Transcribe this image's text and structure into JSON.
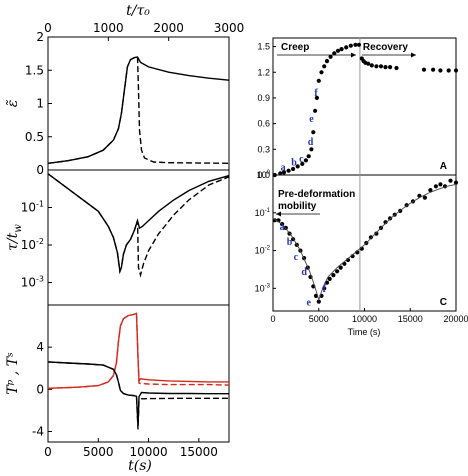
{
  "chart_data": [
    {
      "id": "left-figure",
      "type": "line",
      "top_axis": {
        "label": "t/τ₀",
        "ticks": [
          0,
          1000,
          2000,
          3000
        ]
      },
      "xlabel": "t(s)",
      "xlim": [
        0,
        18000
      ],
      "xticks": [
        0,
        5000,
        10000,
        15000
      ],
      "panels": [
        {
          "id": "strain",
          "ylabel": "ε̃",
          "ylim": [
            0,
            2
          ],
          "yticks": [
            "0",
            "0.5",
            "1",
            "1.5",
            "2"
          ],
          "yticks_values": [
            0,
            0.5,
            1,
            1.5,
            2
          ],
          "series": [
            {
              "style": "solid",
              "color": "#000000",
              "x": [
                0,
                2000,
                4000,
                5500,
                6500,
                7000,
                7300,
                7600,
                7900,
                8200,
                8600,
                8900,
                9200,
                10000,
                12000,
                14000,
                16000,
                18000
              ],
              "y": [
                0.1,
                0.14,
                0.2,
                0.3,
                0.45,
                0.62,
                0.85,
                1.2,
                1.55,
                1.66,
                1.69,
                1.7,
                1.62,
                1.55,
                1.47,
                1.42,
                1.38,
                1.35
              ]
            },
            {
              "style": "dashed",
              "color": "#000000",
              "x": [
                0,
                2000,
                4000,
                5500,
                6500,
                7000,
                7300,
                7600,
                7900,
                8200,
                8600,
                8900,
                9000,
                9100,
                9300,
                9600,
                10500,
                12000,
                18000
              ],
              "y": [
                0.1,
                0.14,
                0.2,
                0.3,
                0.45,
                0.62,
                0.85,
                1.2,
                1.55,
                1.66,
                1.69,
                1.7,
                1.2,
                0.6,
                0.3,
                0.18,
                0.12,
                0.11,
                0.1
              ]
            }
          ]
        },
        {
          "id": "relaxation",
          "ylabel": "τ/t",
          "ylabel_sub": "w",
          "ylim_log10": [
            -3.6,
            0
          ],
          "yticks": [
            {
              "base": "10",
              "exp": "-1",
              "value": -1
            },
            {
              "base": "10",
              "exp": "-2",
              "value": -2
            },
            {
              "base": "10",
              "exp": "-3",
              "value": -3
            }
          ],
          "series": [
            {
              "style": "solid",
              "color": "#000000",
              "x": [
                0,
                1000,
                3000,
                5000,
                6000,
                6500,
                6900,
                7150,
                7300,
                7500,
                7800,
                8200,
                8600,
                8900,
                9100,
                9400,
                10000,
                11000,
                12500,
                14000,
                16000,
                18000
              ],
              "y": [
                -0.1,
                -0.3,
                -0.7,
                -1.1,
                -1.5,
                -1.8,
                -2.2,
                -2.7,
                -2.6,
                -2.25,
                -2.0,
                -1.85,
                -1.6,
                -1.35,
                -1.55,
                -1.5,
                -1.35,
                -1.1,
                -0.8,
                -0.55,
                -0.3,
                -0.15
              ]
            },
            {
              "style": "dashed",
              "color": "#000000",
              "x": [
                0,
                1000,
                3000,
                5000,
                6000,
                6500,
                6900,
                7150,
                7300,
                7500,
                7800,
                8200,
                8600,
                8900,
                9000,
                9200,
                9500,
                10000,
                11000,
                12500,
                14000,
                16000,
                18000
              ],
              "y": [
                -0.1,
                -0.3,
                -0.7,
                -1.1,
                -1.5,
                -1.8,
                -2.2,
                -2.7,
                -2.6,
                -2.25,
                -2.0,
                -1.85,
                -1.6,
                -1.35,
                -2.6,
                -2.8,
                -2.5,
                -2.15,
                -1.7,
                -1.2,
                -0.8,
                -0.4,
                -0.18
              ]
            }
          ]
        },
        {
          "id": "temperatures",
          "ylabel": "Tᵖ , Tˢ",
          "ylim": [
            -5,
            8
          ],
          "yticks": [
            "-4",
            "0",
            "4"
          ],
          "yticks_values": [
            -4,
            0,
            4
          ],
          "series": [
            {
              "style": "solid",
              "color": "#d42a1e",
              "x": [
                0,
                3000,
                5000,
                6000,
                6500,
                6800,
                7000,
                7200,
                7500,
                8000,
                8500,
                8800,
                8950,
                9050,
                9200,
                10000,
                12000,
                14000,
                16000,
                18000
              ],
              "y": [
                0.1,
                0.2,
                0.35,
                0.7,
                1.3,
                2.5,
                4.5,
                6.0,
                6.7,
                7.0,
                7.1,
                7.2,
                3.0,
                0.8,
                1.0,
                0.9,
                0.8,
                0.75,
                0.7,
                0.7
              ]
            },
            {
              "style": "dashed",
              "color": "#d42a1e",
              "x": [
                0,
                3000,
                5000,
                6000,
                6500,
                6800,
                7000,
                7200,
                7500,
                8000,
                8500,
                8800,
                8950,
                9050,
                9200,
                10000,
                12000,
                14000,
                16000,
                18000
              ],
              "y": [
                0.1,
                0.2,
                0.35,
                0.7,
                1.3,
                2.5,
                4.5,
                6.0,
                6.7,
                7.0,
                7.1,
                7.2,
                3.0,
                0.6,
                0.55,
                0.5,
                0.45,
                0.45,
                0.45,
                0.4
              ]
            },
            {
              "style": "solid",
              "color": "#000000",
              "x": [
                0,
                2000,
                4000,
                5500,
                6500,
                6800,
                7000,
                7200,
                7500,
                8000,
                8500,
                8800,
                8950,
                9050,
                9300,
                10000,
                12000,
                14000,
                16000,
                18000
              ],
              "y": [
                2.6,
                2.5,
                2.4,
                2.3,
                1.9,
                1.4,
                0.7,
                -0.1,
                -0.4,
                -0.55,
                -0.6,
                -0.65,
                -3.5,
                -0.7,
                -0.3,
                -0.35,
                -0.4,
                -0.4,
                -0.42,
                -0.42
              ]
            },
            {
              "style": "dashed",
              "color": "#000000",
              "x": [
                0,
                2000,
                4000,
                5500,
                6500,
                6800,
                7000,
                7200,
                7500,
                8000,
                8500,
                8800,
                8950,
                9050,
                9300,
                10000,
                12000,
                14000,
                16000,
                18000
              ],
              "y": [
                2.6,
                2.5,
                2.4,
                2.3,
                1.9,
                1.4,
                0.7,
                -0.1,
                -0.4,
                -0.55,
                -0.6,
                -0.65,
                -3.8,
                -1.1,
                -0.9,
                -0.88,
                -0.86,
                -0.85,
                -0.85,
                -0.85
              ]
            }
          ]
        }
      ]
    },
    {
      "id": "right-figure",
      "type": "scatter",
      "xlabel": "Time (s)",
      "xlim": [
        0,
        20000
      ],
      "xticks": [
        0,
        5000,
        10000,
        15000,
        20000
      ],
      "divider_x": 9500,
      "panels": [
        {
          "id": "A",
          "panel_label": "A",
          "ylim": [
            0,
            1.6
          ],
          "yticks": [
            "0.0",
            "0.3",
            "0.6",
            "0.9",
            "1.2",
            "1.5"
          ],
          "yticks_values": [
            0,
            0.3,
            0.6,
            0.9,
            1.2,
            1.5
          ],
          "annotations": {
            "left": "Creep",
            "right": "Recovery"
          },
          "point_labels": [
            {
              "text": "a",
              "x": 1100,
              "y": 0.05
            },
            {
              "text": "b",
              "x": 2300,
              "y": 0.11
            },
            {
              "text": "c",
              "x": 3100,
              "y": 0.15
            },
            {
              "text": "d",
              "x": 4100,
              "y": 0.35
            },
            {
              "text": "e",
              "x": 4200,
              "y": 0.62
            },
            {
              "text": "f",
              "x": 4700,
              "y": 0.92
            }
          ],
          "points": {
            "x": [
              200,
              800,
              1200,
              1700,
              2200,
              2700,
              3200,
              3600,
              3900,
              4200,
              4400,
              4600,
              4800,
              5000,
              5300,
              5600,
              5900,
              6300,
              6700,
              7100,
              7500,
              8000,
              8500,
              9000,
              9400,
              9700,
              9900,
              10100,
              10400,
              10800,
              11300,
              11800,
              12300,
              12800,
              13500,
              16500,
              17500,
              18300,
              19200,
              20000
            ],
            "y": [
              0.0,
              0.02,
              0.03,
              0.05,
              0.07,
              0.1,
              0.13,
              0.17,
              0.22,
              0.3,
              0.5,
              0.75,
              0.9,
              1.1,
              1.2,
              1.27,
              1.33,
              1.38,
              1.42,
              1.45,
              1.47,
              1.49,
              1.51,
              1.52,
              1.52,
              1.36,
              1.33,
              1.31,
              1.3,
              1.28,
              1.27,
              1.27,
              1.26,
              1.26,
              1.25,
              1.23,
              1.23,
              1.22,
              1.22,
              1.22
            ]
          }
        },
        {
          "id": "C",
          "panel_label": "C",
          "ylim_log10": [
            -3.6,
            0
          ],
          "yticks": [
            {
              "base": "10",
              "exp": "0",
              "value": 0
            },
            {
              "base": "10",
              "exp": "-1",
              "value": -1
            },
            {
              "base": "10",
              "exp": "-2",
              "value": -2
            },
            {
              "base": "10",
              "exp": "-3",
              "value": -3
            }
          ],
          "annotations": {
            "title_line1": "Pre-deformation",
            "title_line2": "mobility"
          },
          "point_labels": [
            {
              "text": "a",
              "x": 1000,
              "y": -1.45
            },
            {
              "text": "b",
              "x": 1800,
              "y": -1.85
            },
            {
              "text": "c",
              "x": 2500,
              "y": -2.25
            },
            {
              "text": "d",
              "x": 3400,
              "y": -2.65
            },
            {
              "text": "e",
              "x": 3900,
              "y": -3.45
            },
            {
              "text": "f",
              "x": 5600,
              "y": -3.1
            }
          ],
          "points": {
            "x": [
              200,
              600,
              1000,
              1400,
              1800,
              2200,
              2600,
              3000,
              3400,
              3800,
              4100,
              4400,
              4700,
              5000,
              5300,
              5600,
              5900,
              6200,
              6600,
              7000,
              7400,
              7800,
              8200,
              8700,
              9200,
              9700,
              10200,
              10700,
              11300,
              11800,
              12300,
              12800,
              13300,
              13900,
              14600,
              15300,
              16000,
              16600,
              17200,
              17800,
              18300,
              18800,
              19400,
              20000
            ],
            "y": [
              -1.2,
              -1.2,
              -1.3,
              -1.4,
              -1.55,
              -1.7,
              -1.85,
              -2.0,
              -2.2,
              -2.45,
              -2.7,
              -2.95,
              -3.2,
              -3.35,
              -3.2,
              -3.0,
              -2.85,
              -2.75,
              -2.65,
              -2.55,
              -2.45,
              -2.35,
              -2.25,
              -2.15,
              -2.05,
              -1.95,
              -1.8,
              -1.65,
              -1.55,
              -1.4,
              -1.25,
              -1.15,
              -1.05,
              -0.95,
              -0.8,
              -0.7,
              -0.55,
              -0.6,
              -0.4,
              -0.3,
              -0.25,
              -0.3,
              -0.15,
              -0.2
            ]
          },
          "fit": {
            "x": [
              0,
              1000,
              2000,
              3000,
              4000,
              4500,
              5000,
              5500,
              6000,
              7000,
              8000,
              9000,
              10000,
              11000,
              12000,
              13000,
              14000,
              15000,
              16000,
              17000,
              18000,
              19000,
              20000
            ],
            "y": [
              -1.15,
              -1.3,
              -1.6,
              -2.0,
              -2.55,
              -2.9,
              -3.3,
              -2.95,
              -2.7,
              -2.45,
              -2.25,
              -2.05,
              -1.85,
              -1.6,
              -1.35,
              -1.12,
              -0.92,
              -0.75,
              -0.6,
              -0.48,
              -0.38,
              -0.3,
              -0.25
            ]
          }
        }
      ]
    }
  ]
}
